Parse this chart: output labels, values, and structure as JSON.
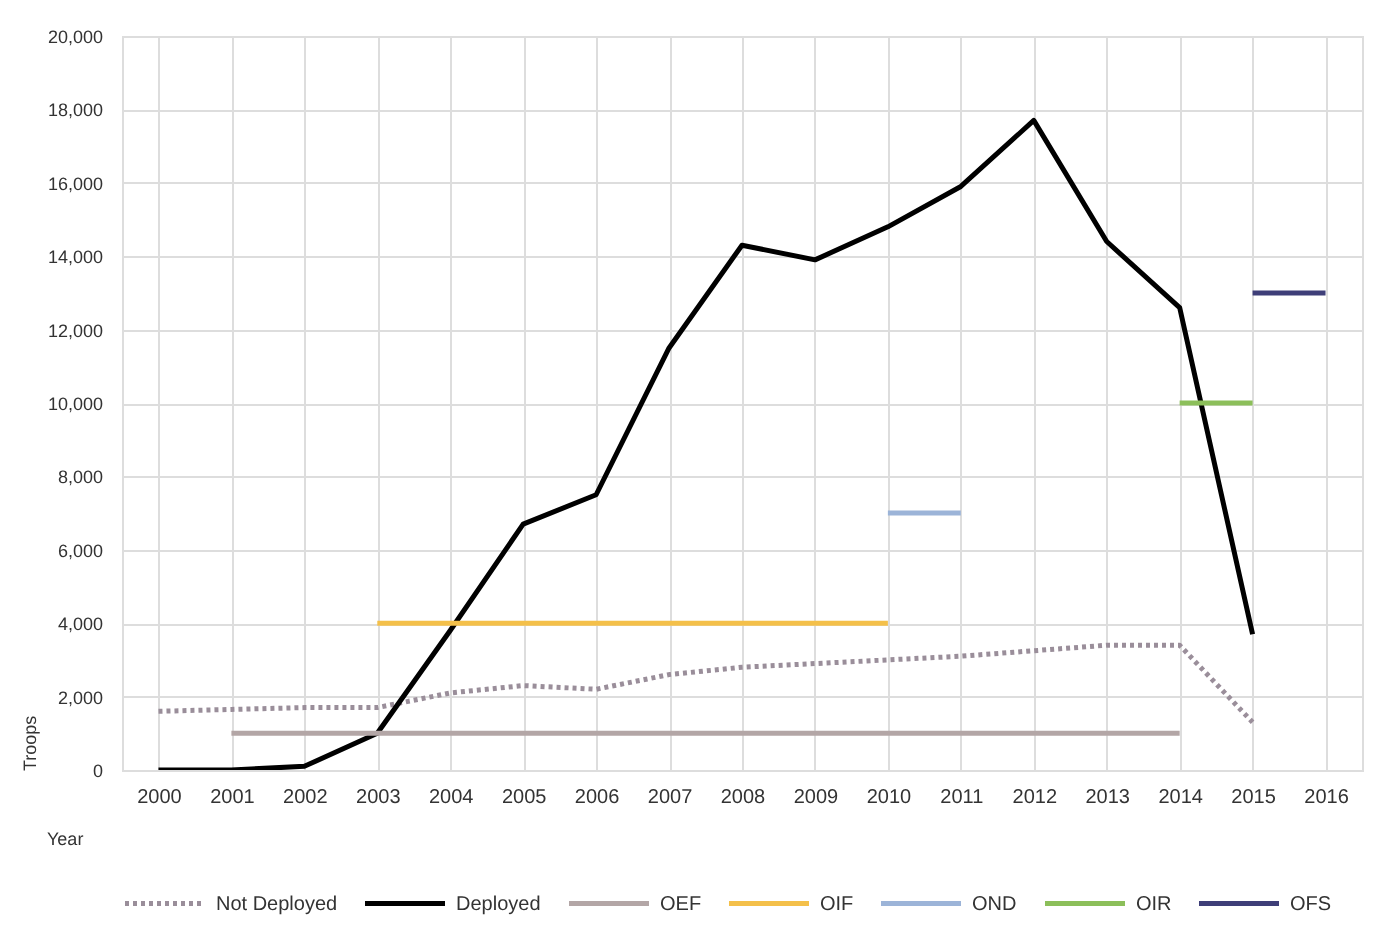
{
  "chart_data": {
    "type": "line",
    "xlabel": "Year",
    "ylabel": "Troops",
    "categories": [
      "2000",
      "2001",
      "2002",
      "2003",
      "2004",
      "2005",
      "2006",
      "2007",
      "2008",
      "2009",
      "2010",
      "2011",
      "2012",
      "2013",
      "2014",
      "2015",
      "2016"
    ],
    "ylim": [
      0,
      20000
    ],
    "yticks": [
      0,
      {
        "value": 2000,
        "label": "2,000"
      },
      {
        "value": 4000,
        "label": "4,000"
      },
      {
        "value": 6000,
        "label": "6,000"
      },
      {
        "value": 8000,
        "label": "8,000"
      },
      {
        "value": 10000,
        "label": "10,000"
      },
      {
        "value": 12000,
        "label": "12,000"
      },
      {
        "value": 14000,
        "label": "14,000"
      },
      {
        "value": 16000,
        "label": "16,000"
      },
      {
        "value": 18000,
        "label": "18,000"
      },
      {
        "value": 20000,
        "label": "20,000"
      }
    ],
    "grid": true,
    "legend": "bottom",
    "series": [
      {
        "name": "Not Deployed",
        "color": "#9a8e9a",
        "line_style": "dotted",
        "values": [
          1600,
          1650,
          1700,
          1700,
          2100,
          2300,
          2200,
          2600,
          2800,
          2900,
          3000,
          3100,
          3250,
          3400,
          3400,
          1300,
          null
        ]
      },
      {
        "name": "Deployed",
        "color": "#000000",
        "line_style": "solid",
        "values": [
          0,
          0,
          100,
          1000,
          3800,
          6700,
          7500,
          11500,
          14300,
          13900,
          14800,
          15900,
          17700,
          14400,
          12600,
          3700,
          null
        ]
      },
      {
        "name": "OEF",
        "color": "#b3a6a6",
        "line_style": "solid",
        "values": [
          null,
          1000,
          1000,
          1000,
          1000,
          1000,
          1000,
          1000,
          1000,
          1000,
          1000,
          1000,
          1000,
          1000,
          1000,
          null,
          null
        ]
      },
      {
        "name": "OIF",
        "color": "#f4c04a",
        "line_style": "solid",
        "values": [
          null,
          null,
          null,
          4000,
          4000,
          4000,
          4000,
          4000,
          4000,
          4000,
          4000,
          null,
          null,
          null,
          null,
          null,
          null
        ]
      },
      {
        "name": "OND",
        "color": "#9cb4d8",
        "line_style": "solid",
        "values": [
          null,
          null,
          null,
          null,
          null,
          null,
          null,
          null,
          null,
          null,
          7000,
          7000,
          null,
          null,
          null,
          null,
          null
        ]
      },
      {
        "name": "OIR",
        "color": "#8cbf5a",
        "line_style": "solid",
        "values": [
          null,
          null,
          null,
          null,
          null,
          null,
          null,
          null,
          null,
          null,
          null,
          null,
          null,
          null,
          10000,
          10000,
          null
        ]
      },
      {
        "name": "OFS",
        "color": "#3e3e78",
        "line_style": "solid",
        "values": [
          null,
          null,
          null,
          null,
          null,
          null,
          null,
          null,
          null,
          null,
          null,
          null,
          null,
          null,
          null,
          13000,
          13000
        ]
      }
    ]
  }
}
